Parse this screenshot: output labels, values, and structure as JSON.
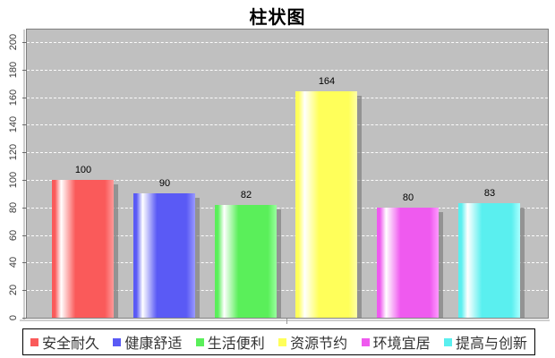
{
  "chart_data": {
    "type": "bar",
    "title": "柱状图",
    "categories": [
      "安全耐久",
      "健康舒适",
      "生活便利",
      "资源节约",
      "环境宜居",
      "提高与创新"
    ],
    "values": [
      100,
      90,
      82,
      164,
      80,
      83
    ],
    "colors": [
      "#fa5a5a",
      "#5a5af5",
      "#5aef5a",
      "#ffff5a",
      "#ef5aef",
      "#5aefef"
    ],
    "colors_light": [
      "#ff9a9a",
      "#9a9aff",
      "#9affa0",
      "#ffffa8",
      "#ff9aff",
      "#a8ffff"
    ],
    "xlabel": "",
    "ylabel": "",
    "ylim": [
      0,
      209
    ],
    "yticks": [
      0,
      20,
      40,
      60,
      80,
      100,
      120,
      140,
      160,
      180,
      200
    ],
    "grid": true,
    "gridline_style": "dashed-white",
    "plot_bg_color": "#c0c0c0",
    "page_bg_color": "#ffffff",
    "legend_position": "bottom",
    "legend_border_color": "#000000"
  }
}
